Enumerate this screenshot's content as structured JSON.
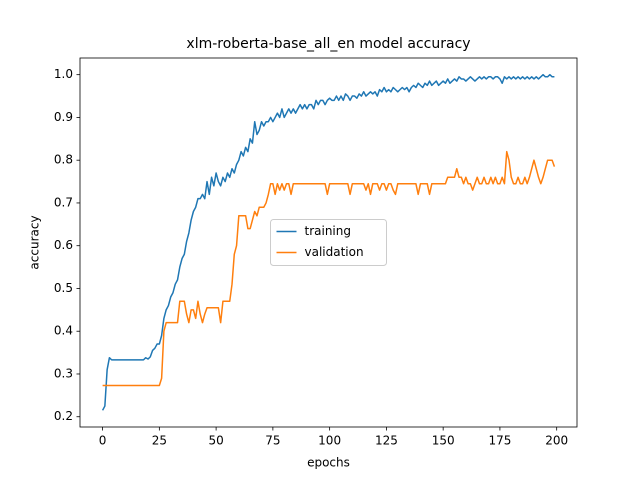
{
  "chart_data": {
    "type": "line",
    "title": "xlm-roberta-base_all_en model accuracy",
    "x_label": "epochs",
    "y_label": "accuracy",
    "x": [
      0,
      1,
      2,
      3,
      4,
      5,
      6,
      7,
      8,
      9,
      10,
      11,
      12,
      13,
      14,
      15,
      16,
      17,
      18,
      19,
      20,
      21,
      22,
      23,
      24,
      25,
      26,
      27,
      28,
      29,
      30,
      31,
      32,
      33,
      34,
      35,
      36,
      37,
      38,
      39,
      40,
      41,
      42,
      43,
      44,
      45,
      46,
      47,
      48,
      49,
      50,
      51,
      52,
      53,
      54,
      55,
      56,
      57,
      58,
      59,
      60,
      61,
      62,
      63,
      64,
      65,
      66,
      67,
      68,
      69,
      70,
      71,
      72,
      73,
      74,
      75,
      76,
      77,
      78,
      79,
      80,
      81,
      82,
      83,
      84,
      85,
      86,
      87,
      88,
      89,
      90,
      91,
      92,
      93,
      94,
      95,
      96,
      97,
      98,
      99,
      100,
      101,
      102,
      103,
      104,
      105,
      106,
      107,
      108,
      109,
      110,
      111,
      112,
      113,
      114,
      115,
      116,
      117,
      118,
      119,
      120,
      121,
      122,
      123,
      124,
      125,
      126,
      127,
      128,
      129,
      130,
      131,
      132,
      133,
      134,
      135,
      136,
      137,
      138,
      139,
      140,
      141,
      142,
      143,
      144,
      145,
      146,
      147,
      148,
      149,
      150,
      151,
      152,
      153,
      154,
      155,
      156,
      157,
      158,
      159,
      160,
      161,
      162,
      163,
      164,
      165,
      166,
      167,
      168,
      169,
      170,
      171,
      172,
      173,
      174,
      175,
      176,
      177,
      178,
      179,
      180,
      181,
      182,
      183,
      184,
      185,
      186,
      187,
      188,
      189,
      190,
      191,
      192,
      193,
      194,
      195,
      196,
      197,
      198,
      199
    ],
    "series": [
      {
        "name": "training",
        "color": "#1f77b4",
        "values": [
          0.215,
          0.225,
          0.31,
          0.338,
          0.333,
          0.333,
          0.333,
          0.333,
          0.333,
          0.333,
          0.333,
          0.333,
          0.333,
          0.333,
          0.333,
          0.333,
          0.333,
          0.333,
          0.333,
          0.338,
          0.335,
          0.34,
          0.355,
          0.36,
          0.37,
          0.37,
          0.39,
          0.43,
          0.45,
          0.46,
          0.48,
          0.49,
          0.51,
          0.52,
          0.55,
          0.57,
          0.58,
          0.61,
          0.63,
          0.66,
          0.68,
          0.69,
          0.71,
          0.71,
          0.72,
          0.71,
          0.75,
          0.72,
          0.76,
          0.74,
          0.77,
          0.75,
          0.74,
          0.76,
          0.75,
          0.77,
          0.76,
          0.78,
          0.77,
          0.79,
          0.8,
          0.82,
          0.81,
          0.83,
          0.82,
          0.85,
          0.84,
          0.89,
          0.86,
          0.87,
          0.89,
          0.88,
          0.89,
          0.89,
          0.9,
          0.89,
          0.9,
          0.91,
          0.9,
          0.92,
          0.9,
          0.91,
          0.92,
          0.91,
          0.92,
          0.91,
          0.92,
          0.93,
          0.92,
          0.93,
          0.92,
          0.93,
          0.93,
          0.92,
          0.94,
          0.93,
          0.94,
          0.94,
          0.93,
          0.94,
          0.945,
          0.94,
          0.94,
          0.95,
          0.94,
          0.95,
          0.94,
          0.955,
          0.95,
          0.94,
          0.95,
          0.95,
          0.945,
          0.955,
          0.95,
          0.96,
          0.95,
          0.955,
          0.96,
          0.955,
          0.96,
          0.95,
          0.965,
          0.96,
          0.97,
          0.96,
          0.965,
          0.96,
          0.97,
          0.965,
          0.96,
          0.965,
          0.97,
          0.965,
          0.97,
          0.96,
          0.97,
          0.975,
          0.97,
          0.98,
          0.975,
          0.97,
          0.98,
          0.975,
          0.985,
          0.975,
          0.98,
          0.985,
          0.975,
          0.98,
          0.985,
          0.98,
          0.99,
          0.98,
          0.985,
          0.99,
          0.985,
          0.995,
          0.99,
          0.99,
          0.985,
          0.99,
          0.995,
          0.99,
          0.985,
          0.99,
          0.995,
          0.99,
          0.995,
          0.99,
          0.995,
          0.995,
          0.99,
          0.995,
          0.995,
          0.99,
          0.98,
          0.995,
          0.99,
          0.995,
          0.99,
          0.995,
          0.99,
          0.995,
          0.99,
          0.995,
          0.99,
          0.995,
          0.99,
          0.995,
          0.99,
          0.995,
          0.99,
          0.995,
          1.0,
          0.995,
          0.995,
          1.0,
          0.995,
          0.995
        ]
      },
      {
        "name": "validation",
        "color": "#ff7f0e",
        "values": [
          0.273,
          0.273,
          0.273,
          0.273,
          0.273,
          0.273,
          0.273,
          0.273,
          0.273,
          0.273,
          0.273,
          0.273,
          0.273,
          0.273,
          0.273,
          0.273,
          0.273,
          0.273,
          0.273,
          0.273,
          0.273,
          0.273,
          0.273,
          0.273,
          0.273,
          0.273,
          0.29,
          0.4,
          0.42,
          0.42,
          0.42,
          0.42,
          0.42,
          0.42,
          0.47,
          0.47,
          0.47,
          0.44,
          0.42,
          0.45,
          0.45,
          0.43,
          0.47,
          0.44,
          0.42,
          0.44,
          0.455,
          0.455,
          0.455,
          0.455,
          0.455,
          0.455,
          0.42,
          0.47,
          0.47,
          0.47,
          0.47,
          0.51,
          0.58,
          0.6,
          0.67,
          0.67,
          0.67,
          0.67,
          0.64,
          0.64,
          0.66,
          0.68,
          0.67,
          0.69,
          0.69,
          0.69,
          0.7,
          0.72,
          0.745,
          0.745,
          0.72,
          0.745,
          0.73,
          0.745,
          0.73,
          0.745,
          0.745,
          0.72,
          0.745,
          0.745,
          0.745,
          0.745,
          0.745,
          0.745,
          0.745,
          0.745,
          0.745,
          0.745,
          0.745,
          0.745,
          0.745,
          0.745,
          0.745,
          0.72,
          0.745,
          0.745,
          0.745,
          0.745,
          0.745,
          0.745,
          0.745,
          0.745,
          0.745,
          0.72,
          0.745,
          0.745,
          0.745,
          0.745,
          0.745,
          0.745,
          0.73,
          0.745,
          0.72,
          0.745,
          0.745,
          0.745,
          0.73,
          0.745,
          0.745,
          0.73,
          0.745,
          0.745,
          0.73,
          0.72,
          0.745,
          0.745,
          0.745,
          0.745,
          0.745,
          0.745,
          0.745,
          0.745,
          0.745,
          0.72,
          0.745,
          0.745,
          0.745,
          0.745,
          0.72,
          0.745,
          0.745,
          0.745,
          0.745,
          0.745,
          0.745,
          0.745,
          0.76,
          0.76,
          0.76,
          0.76,
          0.78,
          0.76,
          0.76,
          0.745,
          0.76,
          0.745,
          0.745,
          0.73,
          0.745,
          0.76,
          0.745,
          0.745,
          0.76,
          0.745,
          0.745,
          0.76,
          0.745,
          0.76,
          0.745,
          0.745,
          0.76,
          0.745,
          0.82,
          0.8,
          0.76,
          0.745,
          0.745,
          0.76,
          0.745,
          0.745,
          0.76,
          0.745,
          0.76,
          0.78,
          0.8,
          0.78,
          0.76,
          0.745,
          0.76,
          0.78,
          0.8,
          0.8,
          0.8,
          0.785
        ]
      }
    ],
    "xlim": [
      -9.95,
      208.95
    ],
    "ylim": [
      0.176,
      1.039
    ],
    "xticks": [
      0,
      25,
      50,
      75,
      100,
      125,
      150,
      175,
      200
    ],
    "yticks": [
      0.2,
      0.3,
      0.4,
      0.5,
      0.6,
      0.7,
      0.8,
      0.9,
      {
        "value": 1,
        "label": "1.0"
      }
    ],
    "legend": "center",
    "grid": false
  }
}
